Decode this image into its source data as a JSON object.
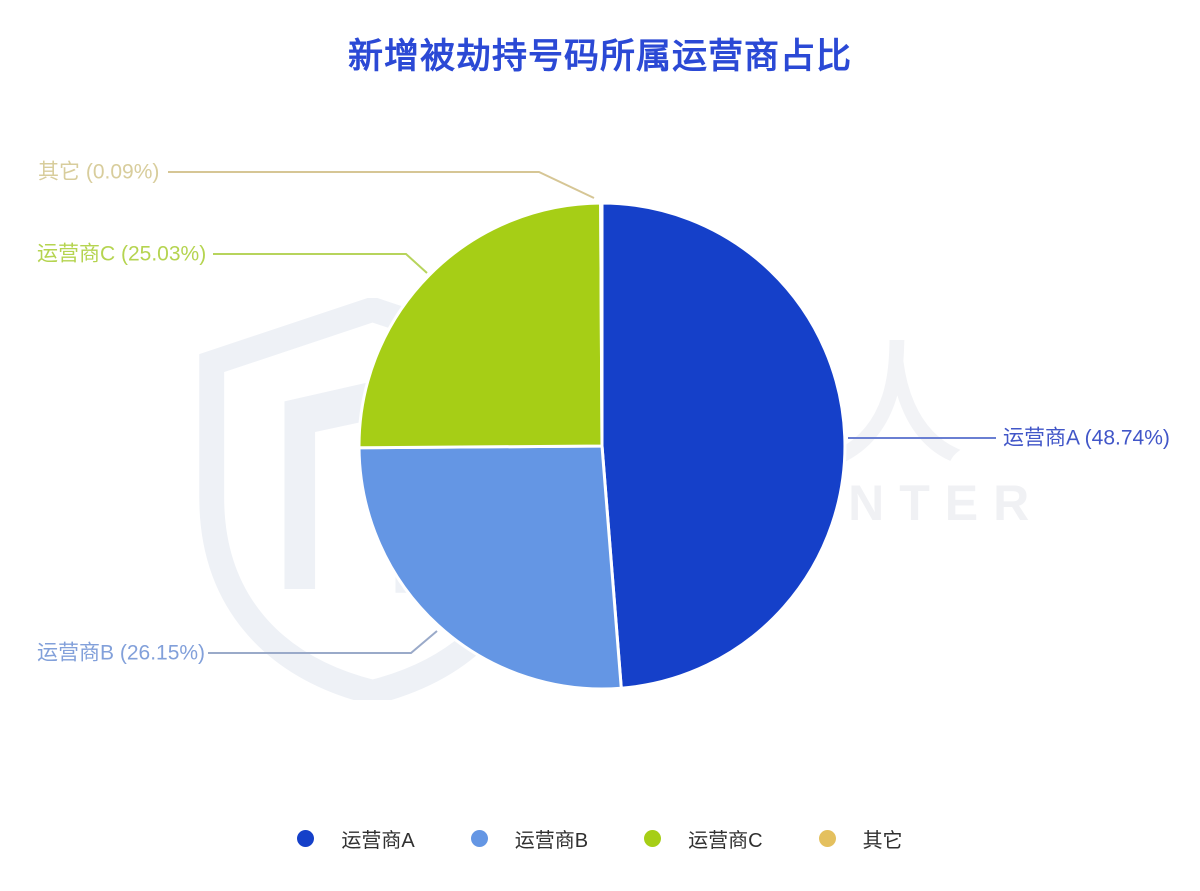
{
  "title": "新增被劫持号码所属运营商占比",
  "watermark": {
    "cn": "威胁猎人",
    "en": "THREAT HUNTER",
    "monogram": "TH"
  },
  "colors": {
    "title": "#2b49d5",
    "legend_text": "#303030",
    "background": "#ffffff",
    "slice_gap": "#ffffff",
    "watermark": "#eef1f6"
  },
  "chart_data": {
    "type": "pie",
    "title": "新增被劫持号码所属运营商占比",
    "legend_position": "bottom",
    "label_format": "{name} ({percent}%)",
    "start_angle": "top",
    "direction": "clockwise",
    "series": [
      {
        "name": "运营商A",
        "percent": 48.74,
        "label": "运营商A (48.74%)",
        "color": "#1540c9",
        "label_color": "#4156c8",
        "line_color": "#6a7fd2"
      },
      {
        "name": "运营商B",
        "percent": 26.15,
        "label": "运营商B (26.15%)",
        "color": "#6496e4",
        "label_color": "#82a0da",
        "line_color": "#9aaac9"
      },
      {
        "name": "运营商C",
        "percent": 25.03,
        "label": "运营商C (25.03%)",
        "color": "#a6ce16",
        "label_color": "#b5d450",
        "line_color": "#b7d45c"
      },
      {
        "name": "其它",
        "percent": 0.09,
        "label": "其它 (0.09%)",
        "color": "#e4c05e",
        "label_color": "#d8cd9c",
        "line_color": "#d6c695"
      }
    ]
  }
}
